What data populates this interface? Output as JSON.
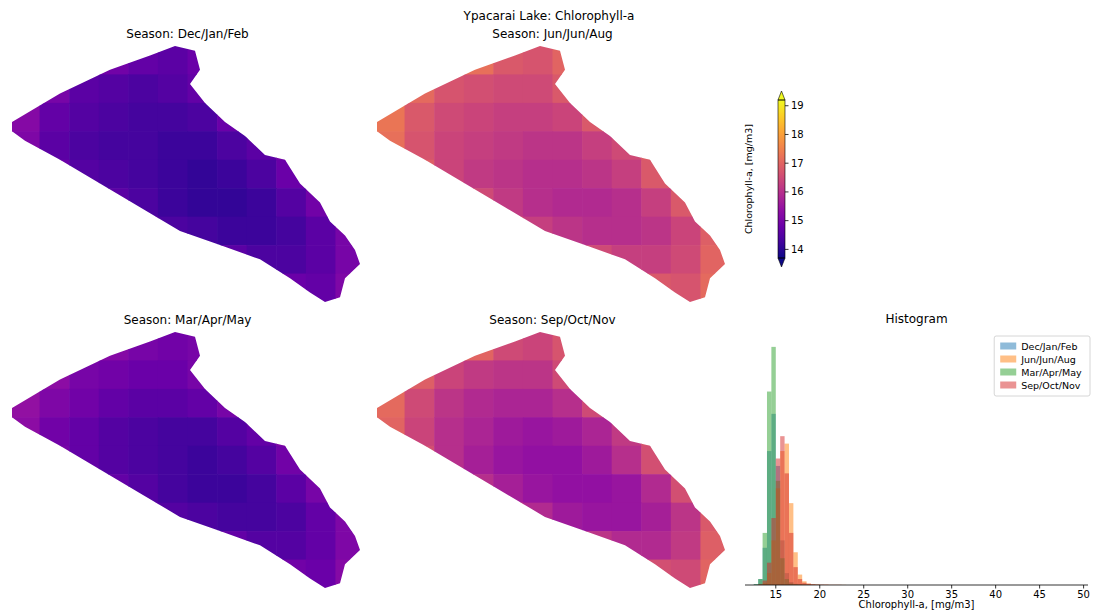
{
  "title": "Ypacarai Lake: Chlorophyll-a",
  "chart_data": [
    {
      "type": "heatmap",
      "title": "Season: Dec/Jan/Feb",
      "color_range": [
        13.7,
        19.2
      ],
      "color_ticks": [
        14,
        15,
        16,
        17,
        18,
        19
      ],
      "color_label": "Chlorophyll-a, [mg/m3]",
      "cells": [
        [
          null,
          null,
          null,
          14.9,
          14.7,
          14.6,
          14.8,
          null,
          null,
          null,
          null,
          null
        ],
        [
          null,
          15.0,
          14.6,
          14.5,
          14.4,
          14.5,
          14.7,
          null,
          null,
          null,
          null,
          null
        ],
        [
          15.2,
          14.7,
          14.5,
          14.4,
          14.3,
          14.3,
          14.4,
          14.8,
          null,
          null,
          null,
          null
        ],
        [
          15.1,
          14.6,
          14.4,
          14.3,
          14.3,
          14.2,
          14.2,
          14.4,
          14.6,
          15.0,
          null,
          null
        ],
        [
          null,
          14.8,
          14.5,
          14.4,
          14.3,
          14.2,
          14.1,
          14.2,
          14.4,
          14.8,
          null,
          null
        ],
        [
          null,
          null,
          null,
          14.6,
          14.4,
          14.2,
          14.1,
          14.1,
          14.2,
          14.5,
          14.9,
          null
        ],
        [
          null,
          null,
          null,
          null,
          14.7,
          14.4,
          14.3,
          14.2,
          14.2,
          14.3,
          14.6,
          15.0
        ],
        [
          null,
          null,
          null,
          null,
          null,
          null,
          null,
          14.6,
          14.4,
          14.4,
          14.6,
          15.0
        ],
        [
          null,
          null,
          null,
          null,
          null,
          null,
          null,
          null,
          null,
          14.8,
          14.7,
          15.1
        ]
      ]
    },
    {
      "type": "heatmap",
      "title": "Season: Jun/Jun/Aug",
      "cells": [
        [
          null,
          null,
          null,
          17.2,
          16.8,
          16.7,
          17.0,
          null,
          null,
          null,
          null,
          null
        ],
        [
          null,
          17.1,
          16.7,
          16.6,
          16.5,
          16.5,
          16.8,
          null,
          null,
          null,
          null,
          null
        ],
        [
          17.3,
          16.8,
          16.5,
          16.4,
          16.3,
          16.3,
          16.4,
          16.8,
          null,
          null,
          null,
          null
        ],
        [
          17.2,
          16.7,
          16.4,
          16.3,
          16.2,
          16.1,
          16.1,
          16.3,
          16.5,
          16.9,
          null,
          null
        ],
        [
          null,
          16.9,
          16.4,
          16.2,
          16.1,
          16.0,
          16.0,
          16.1,
          16.3,
          16.8,
          null,
          null
        ],
        [
          null,
          null,
          null,
          16.5,
          16.2,
          16.0,
          15.9,
          15.9,
          16.0,
          16.3,
          16.8,
          null
        ],
        [
          null,
          null,
          null,
          null,
          16.7,
          16.3,
          16.1,
          16.0,
          16.0,
          16.1,
          16.4,
          16.9
        ],
        [
          null,
          null,
          null,
          null,
          null,
          null,
          null,
          16.5,
          16.3,
          16.3,
          16.5,
          17.0
        ],
        [
          null,
          null,
          null,
          null,
          null,
          null,
          null,
          null,
          null,
          16.8,
          16.7,
          17.1
        ]
      ]
    },
    {
      "type": "heatmap",
      "title": "Season: Mar/Apr/May",
      "cells": [
        [
          null,
          null,
          null,
          15.2,
          15.0,
          14.9,
          15.0,
          null,
          null,
          null,
          null,
          null
        ],
        [
          null,
          15.3,
          15.0,
          14.9,
          14.8,
          14.8,
          15.0,
          null,
          null,
          null,
          null,
          null
        ],
        [
          15.4,
          15.1,
          14.9,
          14.7,
          14.6,
          14.6,
          14.7,
          15.0,
          null,
          null,
          null,
          null
        ],
        [
          15.3,
          14.9,
          14.7,
          14.5,
          14.4,
          14.3,
          14.3,
          14.5,
          14.7,
          15.1,
          null,
          null
        ],
        [
          null,
          15.0,
          14.7,
          14.5,
          14.4,
          14.3,
          14.2,
          14.3,
          14.5,
          14.9,
          null,
          null
        ],
        [
          null,
          null,
          null,
          14.7,
          14.5,
          14.3,
          14.2,
          14.2,
          14.3,
          14.6,
          15.0,
          null
        ],
        [
          null,
          null,
          null,
          null,
          14.8,
          14.5,
          14.4,
          14.3,
          14.3,
          14.4,
          14.7,
          15.1
        ],
        [
          null,
          null,
          null,
          null,
          null,
          null,
          null,
          14.7,
          14.5,
          14.5,
          14.7,
          15.1
        ],
        [
          null,
          null,
          null,
          null,
          null,
          null,
          null,
          null,
          null,
          14.9,
          14.8,
          15.2
        ]
      ]
    },
    {
      "type": "heatmap",
      "title": "Season: Sep/Oct/Nov",
      "cells": [
        [
          null,
          null,
          null,
          17.0,
          16.5,
          16.4,
          16.7,
          null,
          null,
          null,
          null,
          null
        ],
        [
          null,
          16.9,
          16.4,
          16.2,
          16.1,
          16.1,
          16.5,
          null,
          null,
          null,
          null,
          null
        ],
        [
          17.1,
          16.5,
          16.1,
          15.9,
          15.8,
          15.8,
          16.0,
          16.5,
          null,
          null,
          null,
          null
        ],
        [
          17.0,
          16.4,
          16.0,
          15.8,
          15.6,
          15.5,
          15.6,
          15.8,
          16.2,
          16.7,
          null,
          null
        ],
        [
          null,
          16.6,
          16.0,
          15.7,
          15.5,
          15.4,
          15.4,
          15.6,
          16.0,
          16.6,
          null,
          null
        ],
        [
          null,
          null,
          null,
          16.0,
          15.7,
          15.5,
          15.4,
          15.4,
          15.5,
          15.9,
          16.6,
          null
        ],
        [
          null,
          null,
          null,
          null,
          16.3,
          15.9,
          15.6,
          15.5,
          15.5,
          15.7,
          16.1,
          16.8
        ],
        [
          null,
          null,
          null,
          null,
          null,
          null,
          null,
          16.1,
          15.9,
          15.9,
          16.2,
          16.9
        ],
        [
          null,
          null,
          null,
          null,
          null,
          null,
          null,
          null,
          null,
          16.6,
          16.5,
          17.0
        ]
      ]
    },
    {
      "type": "histogram",
      "title": "Histogram",
      "x_label": "Chlorophyll-a, [mg/m3]",
      "xlim": [
        11.5,
        50.5
      ],
      "xticks": [
        15,
        20,
        25,
        30,
        35,
        40,
        45,
        50
      ],
      "ylim": [
        0,
        1700
      ],
      "tick_labels": "x",
      "legend": "upper right",
      "bins": [
        12,
        12.5,
        13,
        13.5,
        14,
        14.5,
        15,
        15.5,
        16,
        16.5,
        17,
        17.5,
        18,
        18.5,
        19,
        19.5,
        20,
        20.5,
        21,
        21.5,
        22,
        22.5,
        23,
        23.5,
        24
      ],
      "series": [
        {
          "name": "Dec/Jan/Feb",
          "color": "#1f77b4",
          "values": [
            0,
            5,
            40,
            250,
            900,
            1150,
            800,
            300,
            80,
            20,
            8,
            5,
            3,
            2,
            1,
            1,
            1,
            0,
            0,
            0,
            0,
            0,
            0,
            0
          ]
        },
        {
          "name": "Jun/Jun/Aug",
          "color": "#ff7f0e",
          "values": [
            0,
            0,
            2,
            15,
            80,
            300,
            650,
            900,
            950,
            550,
            220,
            70,
            25,
            10,
            5,
            3,
            2,
            2,
            1,
            1,
            1,
            1,
            0,
            0
          ]
        },
        {
          "name": "Mar/Apr/May",
          "color": "#2ca02c",
          "values": [
            0,
            5,
            40,
            350,
            1300,
            1600,
            700,
            180,
            40,
            10,
            5,
            3,
            2,
            1,
            1,
            1,
            0,
            0,
            0,
            0,
            0,
            0,
            0,
            0
          ]
        },
        {
          "name": "Sep/Oct/Nov",
          "color": "#d62728",
          "values": [
            0,
            0,
            5,
            30,
            150,
            450,
            850,
            1000,
            750,
            350,
            120,
            40,
            15,
            8,
            5,
            3,
            2,
            2,
            1,
            1,
            1,
            0,
            0,
            0
          ]
        }
      ]
    }
  ]
}
